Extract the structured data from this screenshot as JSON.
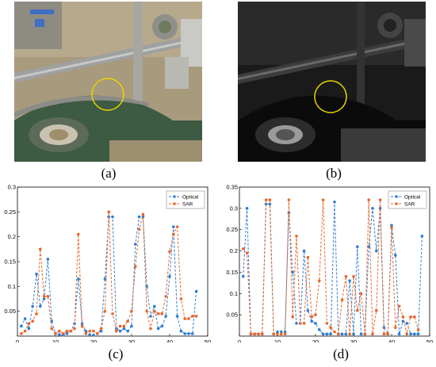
{
  "captions": {
    "a": "(a)",
    "b": "(b)",
    "c": "(c)",
    "d": "(d)"
  },
  "colors": {
    "optical": "#2b7fd4",
    "sar": "#e8662a",
    "circle": "#e8d400"
  },
  "chart_data": [
    {
      "type": "line",
      "panel": "c",
      "xlim": [
        0,
        50
      ],
      "ylim": [
        0,
        0.3
      ],
      "xticks": [
        0,
        10,
        20,
        30,
        40,
        50
      ],
      "yticks": [
        0.05,
        0.1,
        0.15,
        0.2,
        0.25,
        0.3
      ],
      "legend_position": "top-right",
      "series": [
        {
          "name": "Optical",
          "values": [
            0.02,
            0.035,
            0.015,
            0.06,
            0.125,
            0.06,
            0.075,
            0.155,
            0.03,
            0.005,
            0.003,
            0.002,
            0.005,
            0.01,
            0.025,
            0.115,
            0.025,
            0.01,
            0.003,
            0.002,
            0.005,
            0.01,
            0.115,
            0.24,
            0.24,
            0.015,
            0.01,
            0.015,
            0.01,
            0.02,
            0.185,
            0.24,
            0.24,
            0.1,
            0.04,
            0.06,
            0.015,
            0.02,
            0.04,
            0.12,
            0.22,
            0.04,
            0.01,
            0.005,
            0.005,
            0.005,
            0.09
          ]
        },
        {
          "name": "SAR",
          "values": [
            0.005,
            0.01,
            0.025,
            0.03,
            0.045,
            0.175,
            0.08,
            0.08,
            0.015,
            0.005,
            0.01,
            0.005,
            0.01,
            0.01,
            0.015,
            0.205,
            0.02,
            0.005,
            0.01,
            0.01,
            0.005,
            0.015,
            0.05,
            0.25,
            0.045,
            0.01,
            0.02,
            0.02,
            0.03,
            0.05,
            0.14,
            0.215,
            0.245,
            0.05,
            0.015,
            0.05,
            0.045,
            0.045,
            0.08,
            0.17,
            0.205,
            0.22,
            0.075,
            0.035,
            0.035,
            0.04,
            0.04
          ]
        }
      ]
    },
    {
      "type": "line",
      "panel": "d",
      "xlim": [
        0,
        50
      ],
      "ylim": [
        0,
        0.35
      ],
      "xticks": [
        0,
        10,
        20,
        30,
        40,
        50
      ],
      "yticks": [
        0.05,
        0.1,
        0.15,
        0.2,
        0.25,
        0.3,
        0.35
      ],
      "legend_position": "top-right",
      "series": [
        {
          "name": "Optical",
          "values": [
            0.14,
            0.3,
            0.005,
            0.005,
            0.005,
            0.005,
            0.31,
            0.31,
            0.005,
            0.01,
            0.01,
            0.01,
            0.29,
            0.15,
            0.03,
            0.03,
            0.2,
            0.06,
            0.035,
            0.03,
            0.015,
            0.005,
            0.005,
            0.005,
            0.315,
            0.005,
            0.005,
            0.005,
            0.13,
            0.005,
            0.21,
            0.005,
            0.005,
            0.21,
            0.3,
            0.2,
            0.3,
            0.02,
            0.005,
            0.26,
            0.19,
            0.005,
            0.035,
            0.03,
            0.005,
            0.005,
            0.005,
            0.235
          ]
        },
        {
          "name": "SAR",
          "values": [
            0.205,
            0.195,
            0.005,
            0.005,
            0.005,
            0.005,
            0.32,
            0.32,
            0.005,
            0.005,
            0.005,
            0.005,
            0.32,
            0.045,
            0.235,
            0.03,
            0.03,
            0.185,
            0.045,
            0.05,
            0.13,
            0.32,
            0.03,
            0.02,
            0.01,
            0.005,
            0.085,
            0.14,
            0.005,
            0.14,
            0.06,
            0.1,
            0.005,
            0.32,
            0.005,
            0.06,
            0.32,
            0.005,
            0.005,
            0.255,
            0.02,
            0.07,
            0.045,
            0.005,
            0.045,
            0.045,
            0.015
          ]
        }
      ]
    }
  ]
}
